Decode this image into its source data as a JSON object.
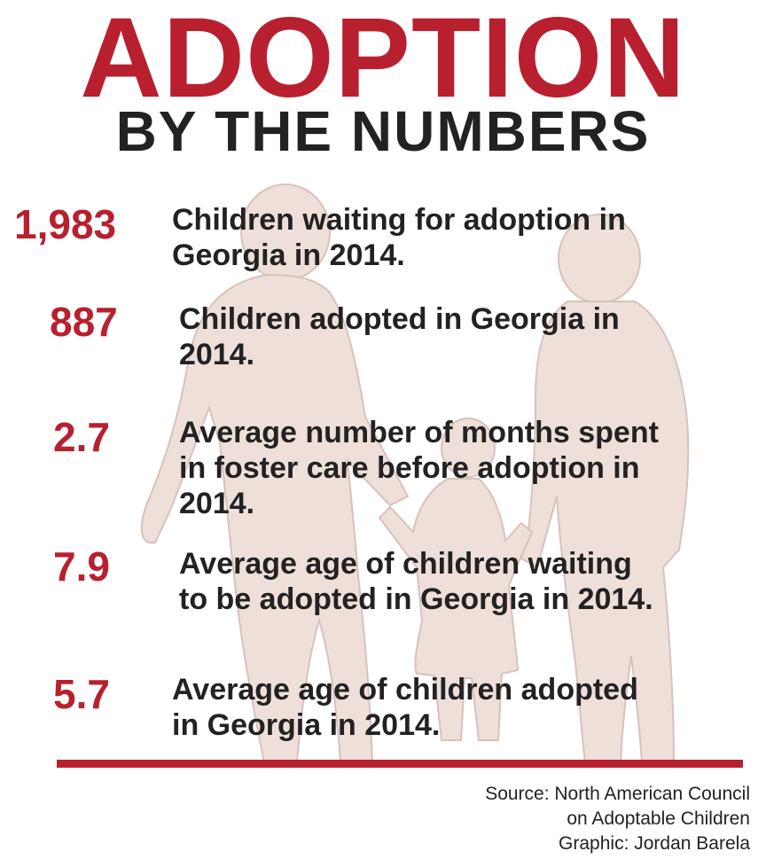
{
  "title": "ADOPTION",
  "subtitle": "BY THE NUMBERS",
  "stats": [
    {
      "value": "1,983",
      "lines": [
        "Children waiting for adoption in",
        "Georgia in 2014."
      ]
    },
    {
      "value": "887",
      "lines": [
        "Children adopted in Georgia in",
        "2014."
      ]
    },
    {
      "value": "2.7",
      "lines": [
        "Average number of months spent",
        "in foster care before adoption in",
        "2014."
      ]
    },
    {
      "value": "7.9",
      "lines": [
        "Average age of children waiting",
        "to be adopted in Georgia in 2014."
      ]
    },
    {
      "value": "5.7",
      "lines": [
        "Average age of children adopted",
        "in Georgia in 2014."
      ]
    }
  ],
  "credits": {
    "source_line1": "Source: North American Council",
    "source_line2": "on Adoptable Children",
    "graphic": "Graphic: Jordan Barela"
  },
  "colors": {
    "accent": "#b8202f",
    "text": "#222222",
    "silhouette": "#eedfd9"
  }
}
